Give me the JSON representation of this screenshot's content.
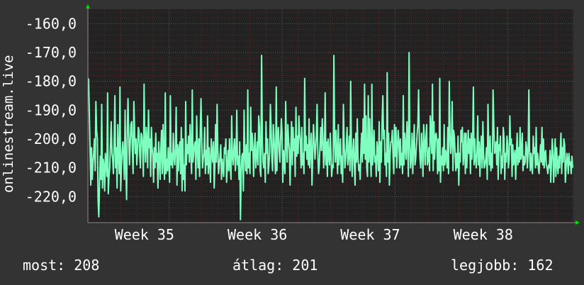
{
  "chart_data": {
    "type": "line",
    "ylabel": "onlinestream.live",
    "ylim": [
      -229,
      -155
    ],
    "yticks": [
      -160,
      -170,
      -180,
      -190,
      -200,
      -210,
      -220
    ],
    "ytick_labels": [
      "-160,0",
      "-170,0",
      "-180,0",
      "-190,0",
      "-200,0",
      "-210,0",
      "-220,0"
    ],
    "x_tick_positions": [
      35,
      36,
      37,
      38
    ],
    "x_tick_labels": [
      "Week 35",
      "Week 36",
      "Week 37",
      "Week 38"
    ],
    "xlim": [
      34.28,
      38.58
    ],
    "grid": true,
    "series": [
      {
        "color": "#7fffbf",
        "values": [
          -179,
          -191,
          -204,
          -216,
          -203,
          -214,
          -208,
          -205,
          -200,
          -211,
          -187,
          -197,
          -200,
          -221,
          -227,
          -215,
          -206,
          -214,
          -188,
          -217,
          -207,
          -209,
          -218,
          -205,
          -209,
          -213,
          -184,
          -219,
          -213,
          -210,
          -202,
          -194,
          -205,
          -207,
          -212,
          -201,
          -185,
          -210,
          -203,
          -217,
          -195,
          -206,
          -212,
          -182,
          -218,
          -209,
          -204,
          -201,
          -206,
          -214,
          -190,
          -208,
          -221,
          -197,
          -186,
          -199,
          -209,
          -202,
          -195,
          -194,
          -204,
          -212,
          -187,
          -197,
          -205,
          -200,
          -209,
          -204,
          -196,
          -197,
          -205,
          -210,
          -198,
          -199,
          -203,
          -213,
          -181,
          -202,
          -208,
          -196,
          -201,
          -210,
          -190,
          -203,
          -200,
          -213,
          -196,
          -203,
          -206,
          -215,
          -203,
          -210,
          -198,
          -208,
          -205,
          -217,
          -201,
          -206,
          -214,
          -203,
          -197,
          -212,
          -195,
          -207,
          -214,
          -184,
          -212,
          -207,
          -211,
          -203,
          -209,
          -215,
          -185,
          -209,
          -205,
          -210,
          -198,
          -206,
          -209,
          -203,
          -189,
          -216,
          -202,
          -211,
          -204,
          -201,
          -212,
          -196,
          -218,
          -200,
          -214,
          -209,
          -218,
          -187,
          -209,
          -202,
          -205,
          -199,
          -208,
          -195,
          -204,
          -212,
          -183,
          -208,
          -205,
          -202,
          -201,
          -214,
          -192,
          -203,
          -210,
          -200,
          -213,
          -197,
          -186,
          -201,
          -210,
          -207,
          -205,
          -196,
          -212,
          -204,
          -209,
          -192,
          -212,
          -203,
          -208,
          -215,
          -200,
          -205,
          -208,
          -201,
          -217,
          -209,
          -195,
          -208,
          -188,
          -203,
          -212,
          -209,
          -206,
          -202,
          -214,
          -207,
          -210,
          -213,
          -203,
          -205,
          -200,
          -215,
          -210,
          -204,
          -211,
          -200,
          -209,
          -214,
          -192,
          -206,
          -209,
          -203,
          -200,
          -211,
          -206,
          -190,
          -209,
          -206,
          -214,
          -201,
          -228,
          -212,
          -206,
          -205,
          -218,
          -190,
          -205,
          -211,
          -202,
          -212,
          -183,
          -210,
          -205,
          -212,
          -189,
          -204,
          -198,
          -203,
          -213,
          -204,
          -198,
          -210,
          -206,
          -201,
          -209,
          -192,
          -196,
          -211,
          -213,
          -171,
          -201,
          -208,
          -210,
          -205,
          -215,
          -194,
          -205,
          -200,
          -212,
          -209,
          -204,
          -188,
          -196,
          -207,
          -211,
          -195,
          -200,
          -206,
          -212,
          -182,
          -211,
          -199,
          -196,
          -204,
          -208,
          -200,
          -193,
          -198,
          -215,
          -204,
          -209,
          -212,
          -187,
          -202,
          -208,
          -195,
          -201,
          -204,
          -216,
          -203,
          -194,
          -209,
          -196,
          -204,
          -200,
          -213,
          -189,
          -206,
          -199,
          -205,
          -192,
          -198,
          -201,
          -210,
          -196,
          -209,
          -205,
          -212,
          -179,
          -204,
          -199,
          -207,
          -202,
          -209,
          -193,
          -210,
          -203,
          -198,
          -216,
          -205,
          -195,
          -200,
          -207,
          -203,
          -199,
          -188,
          -206,
          -212,
          -209,
          -202,
          -196,
          -204,
          -193,
          -200,
          -210,
          -205,
          -184,
          -209,
          -201,
          -213,
          -200,
          -206,
          -209,
          -198,
          -205,
          -213,
          -209,
          -210,
          -171,
          -201,
          -208,
          -197,
          -205,
          -212,
          -195,
          -209,
          -204,
          -200,
          -212,
          -206,
          -215,
          -188,
          -201,
          -210,
          -207,
          -203,
          -196,
          -209,
          -206,
          -199,
          -211,
          -180,
          -205,
          -213,
          -204,
          -200,
          -209,
          -216,
          -198,
          -208,
          -193,
          -206,
          -211,
          -209,
          -214,
          -203,
          -198,
          -208,
          -193,
          -205,
          -181,
          -207,
          -192,
          -210,
          -213,
          -185,
          -208,
          -193,
          -205,
          -213,
          -181,
          -209,
          -204,
          -197,
          -208,
          -206,
          -213,
          -201,
          -204,
          -211,
          -194,
          -215,
          -201,
          -208,
          -194,
          -185,
          -200,
          -197,
          -209,
          -205,
          -213,
          -177,
          -208,
          -198,
          -216,
          -205,
          -201,
          -201,
          -197,
          -206,
          -212,
          -195,
          -206,
          -196,
          -210,
          -203,
          -197,
          -201,
          -210,
          -200,
          -209,
          -205,
          -212,
          -185,
          -209,
          -198,
          -203,
          -207,
          -194,
          -201,
          -213,
          -170,
          -202,
          -210,
          -207,
          -198,
          -212,
          -203,
          -195,
          -209,
          -207,
          -203,
          -198,
          -195,
          -183,
          -201,
          -207,
          -210,
          -198,
          -204,
          -213,
          -195,
          -201,
          -209,
          -200,
          -195,
          -209,
          -207,
          -203,
          -211,
          -192,
          -197,
          -205,
          -181,
          -211,
          -194,
          -207,
          -199,
          -198,
          -201,
          -212,
          -200,
          -211,
          -179,
          -215,
          -206,
          -209,
          -203,
          -211,
          -195,
          -209,
          -204,
          -206,
          -210,
          -196,
          -212,
          -180,
          -198,
          -205,
          -201,
          -187,
          -211,
          -197,
          -199,
          -205,
          -211,
          -205,
          -210,
          -199,
          -216,
          -205,
          -208,
          -197,
          -201,
          -196,
          -209,
          -205,
          -198,
          -212,
          -198,
          -210,
          -204,
          -197,
          -205,
          -200,
          -212,
          -198,
          -207,
          -200,
          -182,
          -209,
          -200,
          -207,
          -210,
          -205,
          -192,
          -209,
          -201,
          -213,
          -204,
          -199,
          -210,
          -194,
          -205,
          -210,
          -209,
          -207,
          -203,
          -214,
          -188,
          -203,
          -209,
          -199,
          -211,
          -205,
          -210,
          -183,
          -195,
          -205,
          -204,
          -201,
          -209,
          -196,
          -214,
          -202,
          -204,
          -199,
          -212,
          -206,
          -210,
          -196,
          -200,
          -214,
          -205,
          -208,
          -199,
          -202,
          -210,
          -207,
          -192,
          -202,
          -200,
          -213,
          -202,
          -209,
          -206,
          -204,
          -214,
          -205,
          -198,
          -209,
          -203,
          -208,
          -196,
          -207,
          -205,
          -198,
          -211,
          -206,
          -209,
          -208,
          -201,
          -203,
          -210,
          -204,
          -183,
          -204,
          -211,
          -205,
          -209,
          -212,
          -199,
          -205,
          -203,
          -210,
          -196,
          -209,
          -205,
          -210,
          -212,
          -207,
          -202,
          -208,
          -196,
          -209,
          -200,
          -210,
          -205,
          -204,
          -209,
          -210,
          -212,
          -209,
          -210,
          -204,
          -215,
          -208,
          -200,
          -205,
          -215,
          -208,
          -200,
          -213,
          -203,
          -209,
          -212,
          -206,
          -210,
          -204,
          -198,
          -212,
          -203,
          -208,
          -200,
          -202,
          -215,
          -210,
          -205,
          -207,
          -212,
          -205,
          -209,
          -208,
          -212,
          -206,
          -210
        ]
      }
    ]
  },
  "stats": {
    "current": "most: 208",
    "average": "átlag: 201",
    "best": "legjobb: 162"
  },
  "colors": {
    "background": "#333333",
    "plot_background": "#222222",
    "line": "#7fffbf",
    "grid_major": "#5a5a5a",
    "grid_minor": "#6b2424",
    "text": "#ffffff",
    "axis_arrow": "#00e000"
  }
}
